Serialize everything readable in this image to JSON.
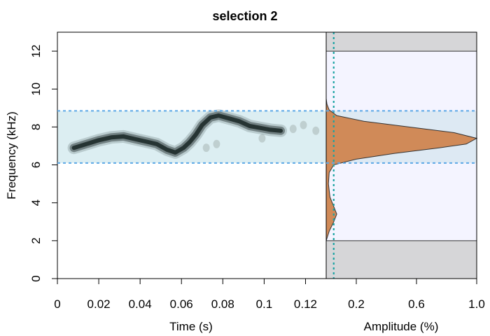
{
  "chart_data": {
    "title": "selection 2",
    "spectrogram": {
      "type": "spectrogram",
      "xlabel": "Time (s)",
      "ylabel": "Frequency (kHz)",
      "xlim": [
        0,
        0.13
      ],
      "ylim": [
        0,
        13
      ],
      "x_ticks": [
        "0",
        "0.02",
        "0.04",
        "0.06",
        "0.08",
        "0.1",
        "0.12"
      ],
      "x_tick_values": [
        0,
        0.02,
        0.04,
        0.06,
        0.08,
        0.1,
        0.12
      ],
      "y_ticks": [
        "0",
        "2",
        "4",
        "6",
        "8",
        "10",
        "12"
      ],
      "y_tick_values": [
        0,
        2,
        4,
        6,
        8,
        10,
        12
      ],
      "selection_band_khz": [
        6.1,
        8.85
      ],
      "band_fill": "#dceef2",
      "band_line_color": "#5aa7e6",
      "trace_color": "#1e2b2a",
      "trace": [
        {
          "t": 0.008,
          "f": 6.9
        },
        {
          "t": 0.014,
          "f": 7.1
        },
        {
          "t": 0.02,
          "f": 7.3
        },
        {
          "t": 0.026,
          "f": 7.45
        },
        {
          "t": 0.032,
          "f": 7.5
        },
        {
          "t": 0.038,
          "f": 7.35
        },
        {
          "t": 0.044,
          "f": 7.2
        },
        {
          "t": 0.048,
          "f": 7.1
        },
        {
          "t": 0.053,
          "f": 6.8
        },
        {
          "t": 0.057,
          "f": 6.65
        },
        {
          "t": 0.061,
          "f": 6.9
        },
        {
          "t": 0.064,
          "f": 7.2
        },
        {
          "t": 0.067,
          "f": 7.6
        },
        {
          "t": 0.07,
          "f": 8.1
        },
        {
          "t": 0.074,
          "f": 8.5
        },
        {
          "t": 0.078,
          "f": 8.6
        },
        {
          "t": 0.083,
          "f": 8.45
        },
        {
          "t": 0.088,
          "f": 8.3
        },
        {
          "t": 0.093,
          "f": 8.05
        },
        {
          "t": 0.098,
          "f": 7.95
        },
        {
          "t": 0.103,
          "f": 7.85
        },
        {
          "t": 0.108,
          "f": 7.8
        }
      ],
      "faint_marks": [
        {
          "t": 0.114,
          "f": 7.9
        },
        {
          "t": 0.119,
          "f": 8.1
        },
        {
          "t": 0.125,
          "f": 7.8
        },
        {
          "t": 0.072,
          "f": 6.9
        },
        {
          "t": 0.077,
          "f": 7.1
        },
        {
          "t": 0.099,
          "f": 7.4
        }
      ]
    },
    "amplitude": {
      "type": "area",
      "xlabel": "Amplitude (%)",
      "xlim": [
        0,
        1.0
      ],
      "x_ticks": [
        "0.2",
        "0.6",
        "1.0"
      ],
      "x_tick_values": [
        0.2,
        0.6,
        1.0
      ],
      "ylim": [
        0,
        13
      ],
      "analysis_range_khz": [
        2,
        12
      ],
      "threshold": 0.05,
      "threshold_color": "#1aa3a3",
      "fill_color": "#d08a58",
      "fill_color_low": "#e07e48",
      "panel_bg": "#f4f4ff",
      "outside_bg": "#d6d6d8",
      "spectrum": [
        {
          "f": 2.0,
          "a": 0.0
        },
        {
          "f": 2.5,
          "a": 0.02
        },
        {
          "f": 3.0,
          "a": 0.05
        },
        {
          "f": 3.4,
          "a": 0.07
        },
        {
          "f": 3.8,
          "a": 0.05
        },
        {
          "f": 4.3,
          "a": 0.025
        },
        {
          "f": 5.0,
          "a": 0.015
        },
        {
          "f": 5.6,
          "a": 0.02
        },
        {
          "f": 6.0,
          "a": 0.05
        },
        {
          "f": 6.3,
          "a": 0.2
        },
        {
          "f": 6.6,
          "a": 0.45
        },
        {
          "f": 6.9,
          "a": 0.75
        },
        {
          "f": 7.1,
          "a": 0.93
        },
        {
          "f": 7.4,
          "a": 1.0
        },
        {
          "f": 7.7,
          "a": 0.85
        },
        {
          "f": 8.0,
          "a": 0.55
        },
        {
          "f": 8.3,
          "a": 0.25
        },
        {
          "f": 8.6,
          "a": 0.07
        },
        {
          "f": 8.9,
          "a": 0.02
        },
        {
          "f": 9.2,
          "a": 0.005
        },
        {
          "f": 9.5,
          "a": 0.0
        }
      ]
    }
  }
}
